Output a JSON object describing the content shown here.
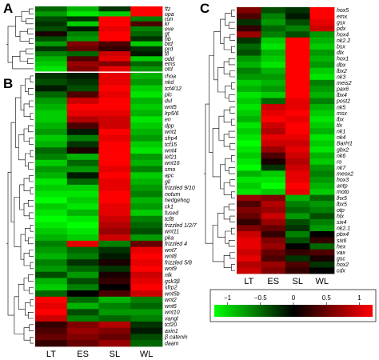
{
  "panels": {
    "A": "A",
    "B": "B",
    "C": "C"
  },
  "chart_data": [
    {
      "type": "heatmap",
      "panel": "A",
      "columns": [
        "LT",
        "ES",
        "SL",
        "WL"
      ],
      "rows": [
        "ftz",
        "opa",
        "run",
        "kr",
        "eve",
        "gt",
        "hb",
        "btd",
        "prd",
        "tll",
        "odd",
        "ems",
        "otd"
      ],
      "values": [
        [
          -0.4,
          -0.7,
          -0.2,
          1.1
        ],
        [
          -0.6,
          -0.9,
          -0.8,
          1.2
        ],
        [
          -0.3,
          -0.2,
          1.0,
          -0.5
        ],
        [
          -0.2,
          -0.8,
          1.0,
          0.3
        ],
        [
          -0.3,
          -0.1,
          0.9,
          -0.5
        ],
        [
          0.1,
          -0.5,
          1.0,
          -0.4
        ],
        [
          -0.3,
          -0.6,
          1.0,
          -0.2
        ],
        [
          -0.6,
          0.5,
          0.3,
          -0.8
        ],
        [
          -0.2,
          0.4,
          0.2,
          -0.2
        ],
        [
          -0.5,
          -0.4,
          0.8,
          -0.1
        ],
        [
          -0.7,
          0.3,
          0.9,
          -0.8
        ],
        [
          -0.8,
          0.6,
          0.5,
          -0.4
        ],
        [
          -0.9,
          0.5,
          0.9,
          -0.6
        ]
      ]
    },
    {
      "type": "heatmap",
      "panel": "B",
      "columns": [
        "LT",
        "ES",
        "SL",
        "WL"
      ],
      "rows": [
        "rhoa",
        "nkd",
        "tcf4/12",
        "plc",
        "dvl",
        "wnt5",
        "lrp5/6",
        "en",
        "dpp",
        "wnt1",
        "sfrp4",
        "tcf15",
        "wnt4",
        "lef21",
        "wnt16",
        "smo",
        "apc",
        "gli",
        "frizzled 9/10",
        "notum",
        "hedgehog",
        "ck1",
        "fused",
        "tcf8",
        "frizzled 1/2/7",
        "wnt11",
        "pka",
        "frizzled 4",
        "wnt7",
        "wnt8",
        "frizzled 5/8",
        "wnt9",
        "nlk",
        "gsk3β",
        "sfrp2",
        "wnt5b",
        "wnt2",
        "wnt6",
        "wnt10",
        "vangl",
        "tcf20",
        "axin1",
        "β catenin",
        "daam"
      ],
      "values": [
        [
          -0.2,
          -0.1,
          0.9,
          -0.7
        ],
        [
          -0.3,
          -0.2,
          0.9,
          -0.6
        ],
        [
          -0.1,
          -0.3,
          1.0,
          -0.8
        ],
        [
          -0.4,
          0.3,
          0.9,
          -0.9
        ],
        [
          -0.6,
          0.8,
          1.0,
          -0.7
        ],
        [
          -0.7,
          1.0,
          1.0,
          -0.8
        ],
        [
          -0.8,
          0.9,
          0.9,
          -0.7
        ],
        [
          -0.8,
          0.7,
          0.8,
          -0.9
        ],
        [
          -0.7,
          0.3,
          0.8,
          -0.8
        ],
        [
          -0.6,
          -0.1,
          1.0,
          -0.7
        ],
        [
          -0.8,
          -0.5,
          0.9,
          -0.6
        ],
        [
          -0.7,
          -0.2,
          1.0,
          -0.8
        ],
        [
          -0.4,
          0.1,
          1.0,
          -0.9
        ],
        [
          -0.5,
          -0.7,
          1.0,
          -0.6
        ],
        [
          -0.8,
          -0.4,
          1.0,
          -0.7
        ],
        [
          -0.6,
          -0.6,
          0.9,
          -0.5
        ],
        [
          -0.7,
          -0.1,
          1.0,
          -0.8
        ],
        [
          -0.9,
          -0.4,
          0.9,
          -0.7
        ],
        [
          -0.8,
          -0.8,
          0.9,
          -0.6
        ],
        [
          -0.9,
          -0.9,
          1.0,
          -0.5
        ],
        [
          -1.0,
          -0.8,
          1.0,
          -0.7
        ],
        [
          -0.8,
          -0.9,
          0.9,
          -0.6
        ],
        [
          -0.9,
          -0.7,
          0.9,
          -0.8
        ],
        [
          -1.0,
          -0.9,
          0.8,
          -0.5
        ],
        [
          -0.9,
          -1.0,
          0.7,
          -0.4
        ],
        [
          -0.8,
          -0.9,
          0.6,
          -0.3
        ],
        [
          -0.7,
          -0.8,
          0.8,
          -0.6
        ],
        [
          -0.5,
          0.9,
          -0.5,
          0.4
        ],
        [
          -0.6,
          -0.4,
          -0.2,
          0.9
        ],
        [
          -0.7,
          -0.5,
          -0.1,
          1.0
        ],
        [
          -0.5,
          -0.2,
          0.1,
          0.9
        ],
        [
          -0.6,
          -0.4,
          -0.2,
          1.0
        ],
        [
          -0.3,
          -0.6,
          0.1,
          0.8
        ],
        [
          -0.7,
          -0.3,
          0.2,
          0.9
        ],
        [
          -0.8,
          -0.5,
          0.0,
          1.0
        ],
        [
          -0.4,
          0.0,
          0.3,
          0.8
        ],
        [
          1.0,
          -0.4,
          -0.7,
          -0.5
        ],
        [
          0.9,
          -0.7,
          -0.5,
          -0.4
        ],
        [
          1.0,
          -0.3,
          -0.6,
          -0.6
        ],
        [
          0.8,
          -0.5,
          -0.4,
          -0.5
        ],
        [
          0.2,
          0.5,
          0.7,
          -0.2
        ],
        [
          0.3,
          0.6,
          0.5,
          -0.1
        ],
        [
          0.4,
          0.5,
          0.4,
          -0.3
        ],
        [
          0.2,
          0.4,
          0.6,
          -0.4
        ]
      ]
    },
    {
      "type": "heatmap",
      "panel": "C",
      "columns": [
        "LT",
        "ES",
        "SL",
        "WL"
      ],
      "rows": [
        "hox5",
        "emx",
        "gsx",
        "pdx",
        "hox4",
        "nk2.2",
        "bsx",
        "dlx",
        "hox1",
        "dbx",
        "lbx2",
        "nk3",
        "meis2",
        "pax6",
        "lbx4",
        "post2",
        "nk5",
        "msx",
        "lbx",
        "tlx",
        "nk1",
        "nk4",
        "BarH1",
        "gbx2",
        "nk6",
        "ro",
        "nk7",
        "meox2",
        "hox3",
        "antp",
        "moto",
        "lhx5",
        "lbx5",
        "otp",
        "hlx",
        "six4",
        "nk2.1",
        "pbx4",
        "six6",
        "hex",
        "vax",
        "gsc",
        "hox2",
        "cdx"
      ],
      "values": [
        [
          0.5,
          -0.3,
          -0.2,
          1.0
        ],
        [
          0.3,
          -0.5,
          -0.1,
          1.0
        ],
        [
          -0.2,
          -0.6,
          -0.3,
          0.9
        ],
        [
          0.2,
          -0.4,
          -0.5,
          0.8
        ],
        [
          0.6,
          -0.5,
          -0.3,
          -0.6
        ],
        [
          -0.2,
          -0.8,
          1.0,
          -0.7
        ],
        [
          -0.4,
          -0.9,
          1.0,
          -0.8
        ],
        [
          -0.3,
          -0.7,
          1.0,
          -0.6
        ],
        [
          -0.6,
          -0.8,
          1.0,
          -0.7
        ],
        [
          -0.7,
          -0.9,
          1.0,
          -0.6
        ],
        [
          -0.5,
          -0.7,
          1.0,
          -0.8
        ],
        [
          -0.6,
          -0.6,
          1.0,
          -0.9
        ],
        [
          -0.8,
          -0.7,
          1.0,
          -0.5
        ],
        [
          -0.7,
          -0.6,
          1.0,
          -0.6
        ],
        [
          -0.9,
          -0.8,
          1.0,
          -0.7
        ],
        [
          -0.8,
          -0.4,
          0.9,
          -0.5
        ],
        [
          -0.9,
          0.8,
          0.9,
          -0.7
        ],
        [
          -0.8,
          0.9,
          1.0,
          -0.8
        ],
        [
          -0.7,
          1.0,
          0.9,
          -0.9
        ],
        [
          -0.9,
          0.8,
          1.0,
          -0.8
        ],
        [
          -0.8,
          0.7,
          1.0,
          -0.7
        ],
        [
          -0.9,
          0.9,
          0.9,
          -0.9
        ],
        [
          -1.0,
          0.8,
          0.8,
          -0.8
        ],
        [
          -0.9,
          0.6,
          0.9,
          -0.9
        ],
        [
          -0.8,
          0.3,
          0.8,
          -0.7
        ],
        [
          -0.9,
          0.1,
          0.7,
          -0.8
        ],
        [
          -1.0,
          -0.2,
          0.8,
          -0.6
        ],
        [
          -0.7,
          -0.8,
          0.9,
          -0.5
        ],
        [
          -0.9,
          -0.9,
          0.9,
          -0.6
        ],
        [
          -0.8,
          -1.0,
          1.0,
          -0.7
        ],
        [
          -0.9,
          -0.8,
          0.9,
          -0.8
        ],
        [
          0.6,
          0.5,
          -0.7,
          -0.4
        ],
        [
          0.3,
          0.7,
          -0.5,
          -0.6
        ],
        [
          0.5,
          0.6,
          -0.4,
          -0.5
        ],
        [
          0.4,
          0.8,
          -0.6,
          -0.3
        ],
        [
          0.2,
          0.6,
          -0.3,
          -0.5
        ],
        [
          0.5,
          0.4,
          -0.2,
          -0.6
        ],
        [
          0.8,
          0.2,
          -0.5,
          0.0
        ],
        [
          0.9,
          0.5,
          -0.3,
          0.2
        ],
        [
          0.9,
          0.6,
          0.0,
          -0.4
        ],
        [
          0.8,
          0.4,
          0.2,
          0.3
        ],
        [
          0.9,
          0.3,
          -0.2,
          0.1
        ],
        [
          0.7,
          0.6,
          0.3,
          -0.2
        ],
        [
          0.8,
          0.5,
          0.2,
          0.0
        ]
      ]
    }
  ],
  "colorbar": {
    "ticks": [
      -1,
      -0.5,
      0,
      0.5,
      1
    ],
    "tick_labels": [
      "−1",
      "−0.5",
      "0",
      "0.5",
      "1"
    ],
    "colors": {
      "low": "#00ff00",
      "mid": "#000000",
      "high": "#ff0000"
    }
  }
}
